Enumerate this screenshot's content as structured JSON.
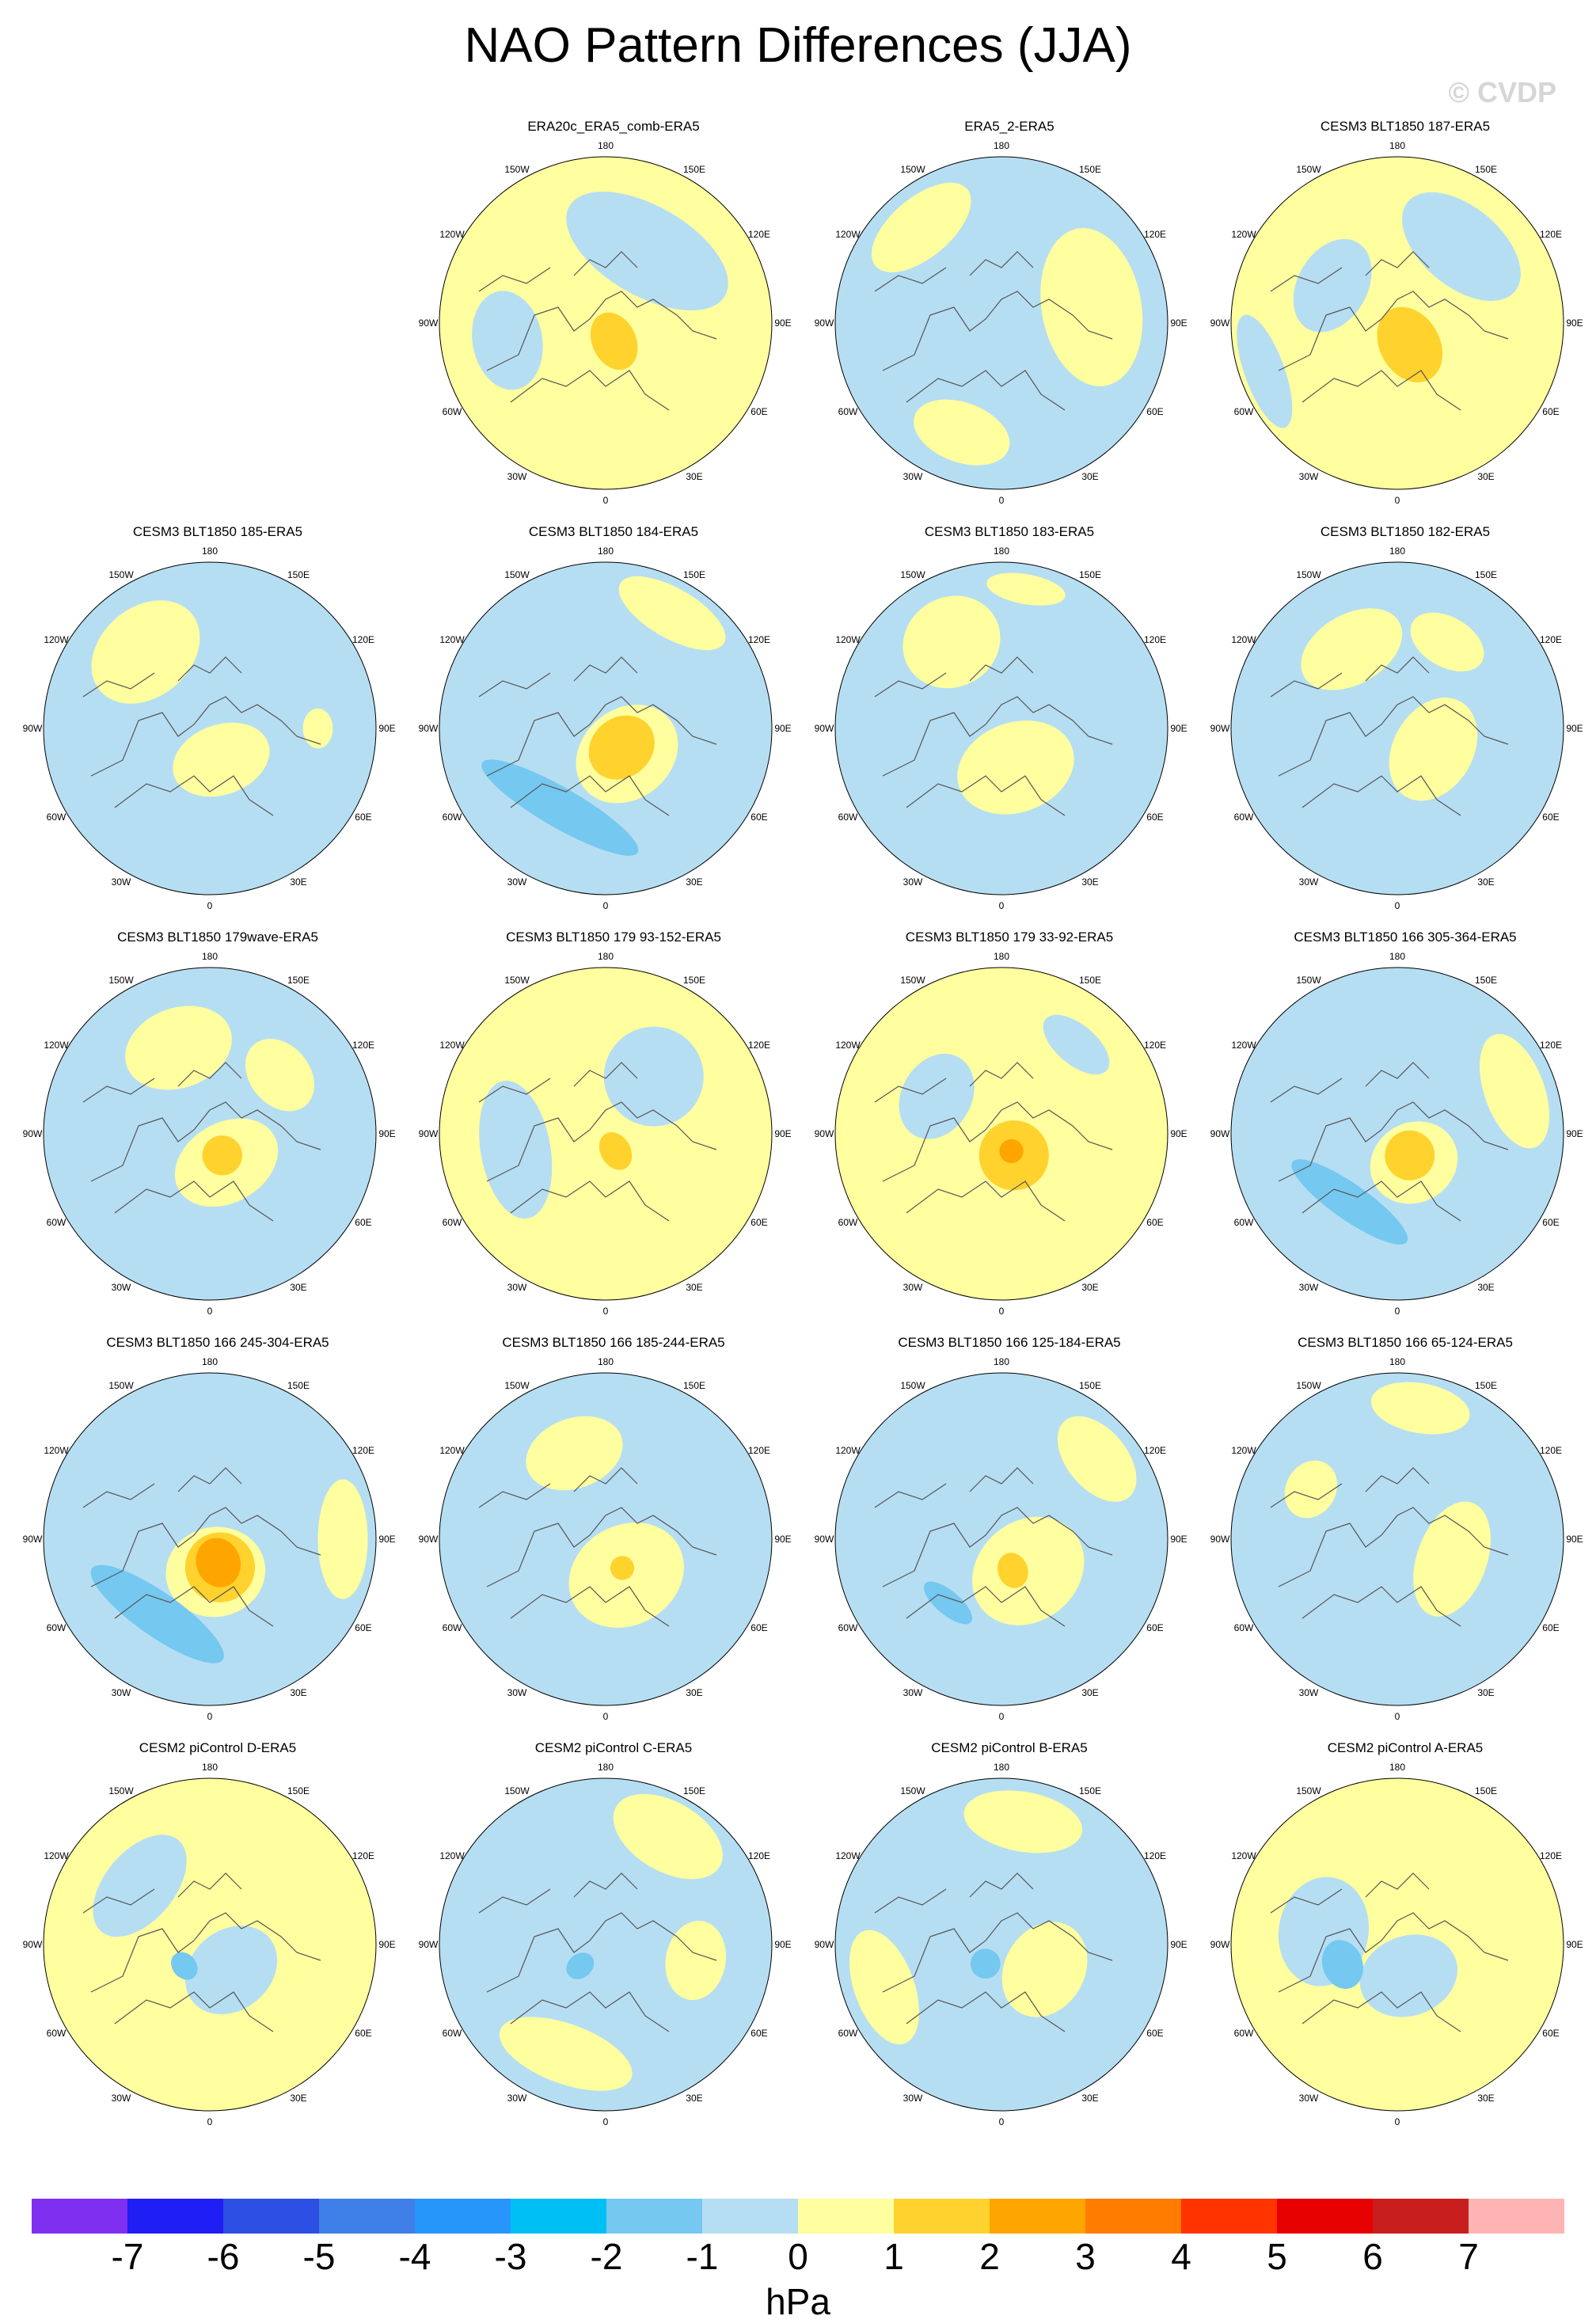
{
  "title": "NAO Pattern Differences (JJA)",
  "watermark": "© CVDP",
  "lon_labels": [
    "180",
    "150E",
    "120E",
    "90E",
    "60E",
    "30E",
    "0",
    "30W",
    "60W",
    "90W",
    "120W",
    "150W"
  ],
  "panels": [
    {
      "title": "ERA20c_ERA5_comb-ERA5",
      "base": "#ffff9f",
      "blobs": [
        {
          "c": "#b6def2",
          "a": 30,
          "d": 0.5,
          "w": 0.9,
          "h": 0.45
        },
        {
          "c": "#ffd22e",
          "a": 155,
          "d": 0.12,
          "w": 0.22,
          "h": 0.3
        },
        {
          "c": "#b6def2",
          "a": 260,
          "d": 0.6,
          "w": 0.5,
          "h": 0.35
        }
      ]
    },
    {
      "title": "ERA5_2-ERA5",
      "base": "#b6def2",
      "blobs": [
        {
          "c": "#ffff9f",
          "a": 80,
          "d": 0.55,
          "w": 0.8,
          "h": 0.5
        },
        {
          "c": "#ffff9f",
          "a": 200,
          "d": 0.7,
          "w": 0.5,
          "h": 0.3
        },
        {
          "c": "#ffff9f",
          "a": 320,
          "d": 0.75,
          "w": 0.6,
          "h": 0.3
        }
      ]
    },
    {
      "title": "CESM3 BLT1850 187-ERA5",
      "base": "#ffff9f",
      "blobs": [
        {
          "c": "#b6def2",
          "a": 40,
          "d": 0.6,
          "w": 0.7,
          "h": 0.4
        },
        {
          "c": "#ffd22e",
          "a": 150,
          "d": 0.15,
          "w": 0.3,
          "h": 0.4
        },
        {
          "c": "#b6def2",
          "a": 300,
          "d": 0.45,
          "w": 0.5,
          "h": 0.35
        },
        {
          "c": "#b6def2",
          "a": 250,
          "d": 0.85,
          "w": 0.6,
          "h": 0.2
        }
      ]
    },
    {
      "title": "CESM3 BLT1850 185-ERA5",
      "base": "#b6def2",
      "blobs": [
        {
          "c": "#ffff9f",
          "a": 160,
          "d": 0.2,
          "w": 0.5,
          "h": 0.35
        },
        {
          "c": "#ffff9f",
          "a": 320,
          "d": 0.6,
          "w": 0.6,
          "h": 0.45
        },
        {
          "c": "#ffff9f",
          "a": 90,
          "d": 0.65,
          "w": 0.2,
          "h": 0.15
        }
      ]
    },
    {
      "title": "CESM3 BLT1850 184-ERA5",
      "base": "#b6def2",
      "blobs": [
        {
          "c": "#ffff9f",
          "a": 140,
          "d": 0.2,
          "w": 0.55,
          "h": 0.45
        },
        {
          "c": "#ffd22e",
          "a": 140,
          "d": 0.15,
          "w": 0.35,
          "h": 0.3
        },
        {
          "c": "#75c8f0",
          "a": 210,
          "d": 0.55,
          "w": 0.9,
          "h": 0.2
        },
        {
          "c": "#ffff9f",
          "a": 30,
          "d": 0.8,
          "w": 0.6,
          "h": 0.25
        }
      ]
    },
    {
      "title": "CESM3 BLT1850 183-ERA5",
      "base": "#b6def2",
      "blobs": [
        {
          "c": "#ffff9f",
          "a": 160,
          "d": 0.25,
          "w": 0.6,
          "h": 0.45
        },
        {
          "c": "#ffff9f",
          "a": 330,
          "d": 0.6,
          "w": 0.5,
          "h": 0.45
        },
        {
          "c": "#ffff9f",
          "a": 10,
          "d": 0.85,
          "w": 0.4,
          "h": 0.15
        }
      ]
    },
    {
      "title": "CESM3 BLT1850 182-ERA5",
      "base": "#b6def2",
      "blobs": [
        {
          "c": "#ffff9f",
          "a": 120,
          "d": 0.25,
          "w": 0.55,
          "h": 0.4
        },
        {
          "c": "#ffff9f",
          "a": 330,
          "d": 0.55,
          "w": 0.55,
          "h": 0.35
        },
        {
          "c": "#ffff9f",
          "a": 30,
          "d": 0.6,
          "w": 0.4,
          "h": 0.25
        }
      ]
    },
    {
      "title": "CESM3 BLT1850 179wave-ERA5",
      "base": "#b6def2",
      "blobs": [
        {
          "c": "#ffff9f",
          "a": 150,
          "d": 0.2,
          "w": 0.55,
          "h": 0.4
        },
        {
          "c": "#ffd22e",
          "a": 150,
          "d": 0.15,
          "w": 0.2,
          "h": 0.2
        },
        {
          "c": "#ffff9f",
          "a": 340,
          "d": 0.55,
          "w": 0.55,
          "h": 0.4
        },
        {
          "c": "#ffff9f",
          "a": 50,
          "d": 0.55,
          "w": 0.4,
          "h": 0.3
        }
      ]
    },
    {
      "title": "CESM3 BLT1850 179 93-152-ERA5",
      "base": "#ffff9f",
      "blobs": [
        {
          "c": "#b6def2",
          "a": 40,
          "d": 0.45,
          "w": 0.5,
          "h": 0.5
        },
        {
          "c": "#b6def2",
          "a": 260,
          "d": 0.55,
          "w": 0.7,
          "h": 0.35
        },
        {
          "c": "#ffd22e",
          "a": 150,
          "d": 0.12,
          "w": 0.15,
          "h": 0.2
        }
      ]
    },
    {
      "title": "CESM3 BLT1850 179 33-92-ERA5",
      "base": "#ffff9f",
      "blobs": [
        {
          "c": "#ffd22e",
          "a": 150,
          "d": 0.15,
          "w": 0.35,
          "h": 0.35
        },
        {
          "c": "#ffa500",
          "a": 150,
          "d": 0.12,
          "w": 0.12,
          "h": 0.12
        },
        {
          "c": "#b6def2",
          "a": 300,
          "d": 0.45,
          "w": 0.45,
          "h": 0.35
        },
        {
          "c": "#b6def2",
          "a": 40,
          "d": 0.7,
          "w": 0.4,
          "h": 0.2
        }
      ]
    },
    {
      "title": "CESM3 BLT1850 166 305-364-ERA5",
      "base": "#b6def2",
      "blobs": [
        {
          "c": "#ffff9f",
          "a": 150,
          "d": 0.2,
          "w": 0.45,
          "h": 0.4
        },
        {
          "c": "#ffd22e",
          "a": 150,
          "d": 0.15,
          "w": 0.25,
          "h": 0.25
        },
        {
          "c": "#ffff9f",
          "a": 70,
          "d": 0.75,
          "w": 0.6,
          "h": 0.3
        },
        {
          "c": "#75c8f0",
          "a": 215,
          "d": 0.5,
          "w": 0.7,
          "h": 0.18
        }
      ]
    },
    {
      "title": "CESM3 BLT1850 166 245-304-ERA5",
      "base": "#b6def2",
      "blobs": [
        {
          "c": "#ffff9f",
          "a": 170,
          "d": 0.2,
          "w": 0.5,
          "h": 0.45
        },
        {
          "c": "#ffd22e",
          "a": 160,
          "d": 0.18,
          "w": 0.35,
          "h": 0.35
        },
        {
          "c": "#ffa500",
          "a": 160,
          "d": 0.15,
          "w": 0.22,
          "h": 0.25
        },
        {
          "c": "#75c8f0",
          "a": 215,
          "d": 0.55,
          "w": 0.8,
          "h": 0.22
        },
        {
          "c": "#ffff9f",
          "a": 90,
          "d": 0.8,
          "w": 0.6,
          "h": 0.25
        }
      ]
    },
    {
      "title": "CESM3 BLT1850 166 185-244-ERA5",
      "base": "#b6def2",
      "blobs": [
        {
          "c": "#ffff9f",
          "a": 150,
          "d": 0.25,
          "w": 0.6,
          "h": 0.5
        },
        {
          "c": "#ffd22e",
          "a": 150,
          "d": 0.2,
          "w": 0.12,
          "h": 0.12
        },
        {
          "c": "#ffff9f",
          "a": 340,
          "d": 0.55,
          "w": 0.5,
          "h": 0.35
        }
      ]
    },
    {
      "title": "CESM3 BLT1850 166 125-184-ERA5",
      "base": "#b6def2",
      "blobs": [
        {
          "c": "#ffff9f",
          "a": 140,
          "d": 0.25,
          "w": 0.6,
          "h": 0.5
        },
        {
          "c": "#ffd22e",
          "a": 160,
          "d": 0.2,
          "w": 0.15,
          "h": 0.18
        },
        {
          "c": "#ffff9f",
          "a": 50,
          "d": 0.75,
          "w": 0.5,
          "h": 0.3
        },
        {
          "c": "#75c8f0",
          "a": 220,
          "d": 0.5,
          "w": 0.3,
          "h": 0.12
        }
      ]
    },
    {
      "title": "CESM3 BLT1850 166 65-124-ERA5",
      "base": "#b6def2",
      "blobs": [
        {
          "c": "#ffff9f",
          "a": 110,
          "d": 0.35,
          "w": 0.6,
          "h": 0.35
        },
        {
          "c": "#ffff9f",
          "a": 10,
          "d": 0.8,
          "w": 0.5,
          "h": 0.25
        },
        {
          "c": "#ffff9f",
          "a": 300,
          "d": 0.6,
          "w": 0.3,
          "h": 0.25
        }
      ]
    },
    {
      "title": "CESM2 piControl D-ERA5",
      "base": "#ffff9f",
      "blobs": [
        {
          "c": "#b6def2",
          "a": 140,
          "d": 0.2,
          "w": 0.5,
          "h": 0.4
        },
        {
          "c": "#b6def2",
          "a": 310,
          "d": 0.55,
          "w": 0.6,
          "h": 0.35
        },
        {
          "c": "#75c8f0",
          "a": 230,
          "d": 0.2,
          "w": 0.15,
          "h": 0.12
        }
      ]
    },
    {
      "title": "CESM2 piControl C-ERA5",
      "base": "#b6def2",
      "blobs": [
        {
          "c": "#ffff9f",
          "a": 30,
          "d": 0.75,
          "w": 0.6,
          "h": 0.35
        },
        {
          "c": "#ffff9f",
          "a": 200,
          "d": 0.7,
          "w": 0.7,
          "h": 0.3
        },
        {
          "c": "#ffff9f",
          "a": 100,
          "d": 0.55,
          "w": 0.4,
          "h": 0.3
        },
        {
          "c": "#75c8f0",
          "a": 230,
          "d": 0.2,
          "w": 0.12,
          "h": 0.15
        }
      ]
    },
    {
      "title": "CESM2 piControl B-ERA5",
      "base": "#b6def2",
      "blobs": [
        {
          "c": "#ffff9f",
          "a": 120,
          "d": 0.3,
          "w": 0.5,
          "h": 0.4
        },
        {
          "c": "#ffff9f",
          "a": 10,
          "d": 0.75,
          "w": 0.6,
          "h": 0.3
        },
        {
          "c": "#ffff9f",
          "a": 250,
          "d": 0.75,
          "w": 0.6,
          "h": 0.3
        },
        {
          "c": "#75c8f0",
          "a": 220,
          "d": 0.15,
          "w": 0.15,
          "h": 0.15
        }
      ]
    },
    {
      "title": "CESM2 piControl A-ERA5",
      "base": "#ffff9f",
      "blobs": [
        {
          "c": "#b6def2",
          "a": 160,
          "d": 0.2,
          "w": 0.5,
          "h": 0.4
        },
        {
          "c": "#b6def2",
          "a": 280,
          "d": 0.45,
          "w": 0.55,
          "h": 0.45
        },
        {
          "c": "#75c8f0",
          "a": 250,
          "d": 0.35,
          "w": 0.25,
          "h": 0.2
        }
      ]
    }
  ],
  "colorbar": {
    "colors": [
      "#7f2ff0",
      "#1e1ef5",
      "#2d4fe3",
      "#3f7fe8",
      "#2696fa",
      "#00bff5",
      "#75c8f0",
      "#b6def2",
      "#ffff9f",
      "#ffd22e",
      "#ffa500",
      "#ff7c00",
      "#ff3300",
      "#e60000",
      "#c81e1e",
      "#ffb4b4"
    ],
    "ticks": [
      "-7",
      "-6",
      "-5",
      "-4",
      "-3",
      "-2",
      "-1",
      "0",
      "1",
      "2",
      "3",
      "4",
      "5",
      "6",
      "7"
    ],
    "units": "hPa"
  }
}
